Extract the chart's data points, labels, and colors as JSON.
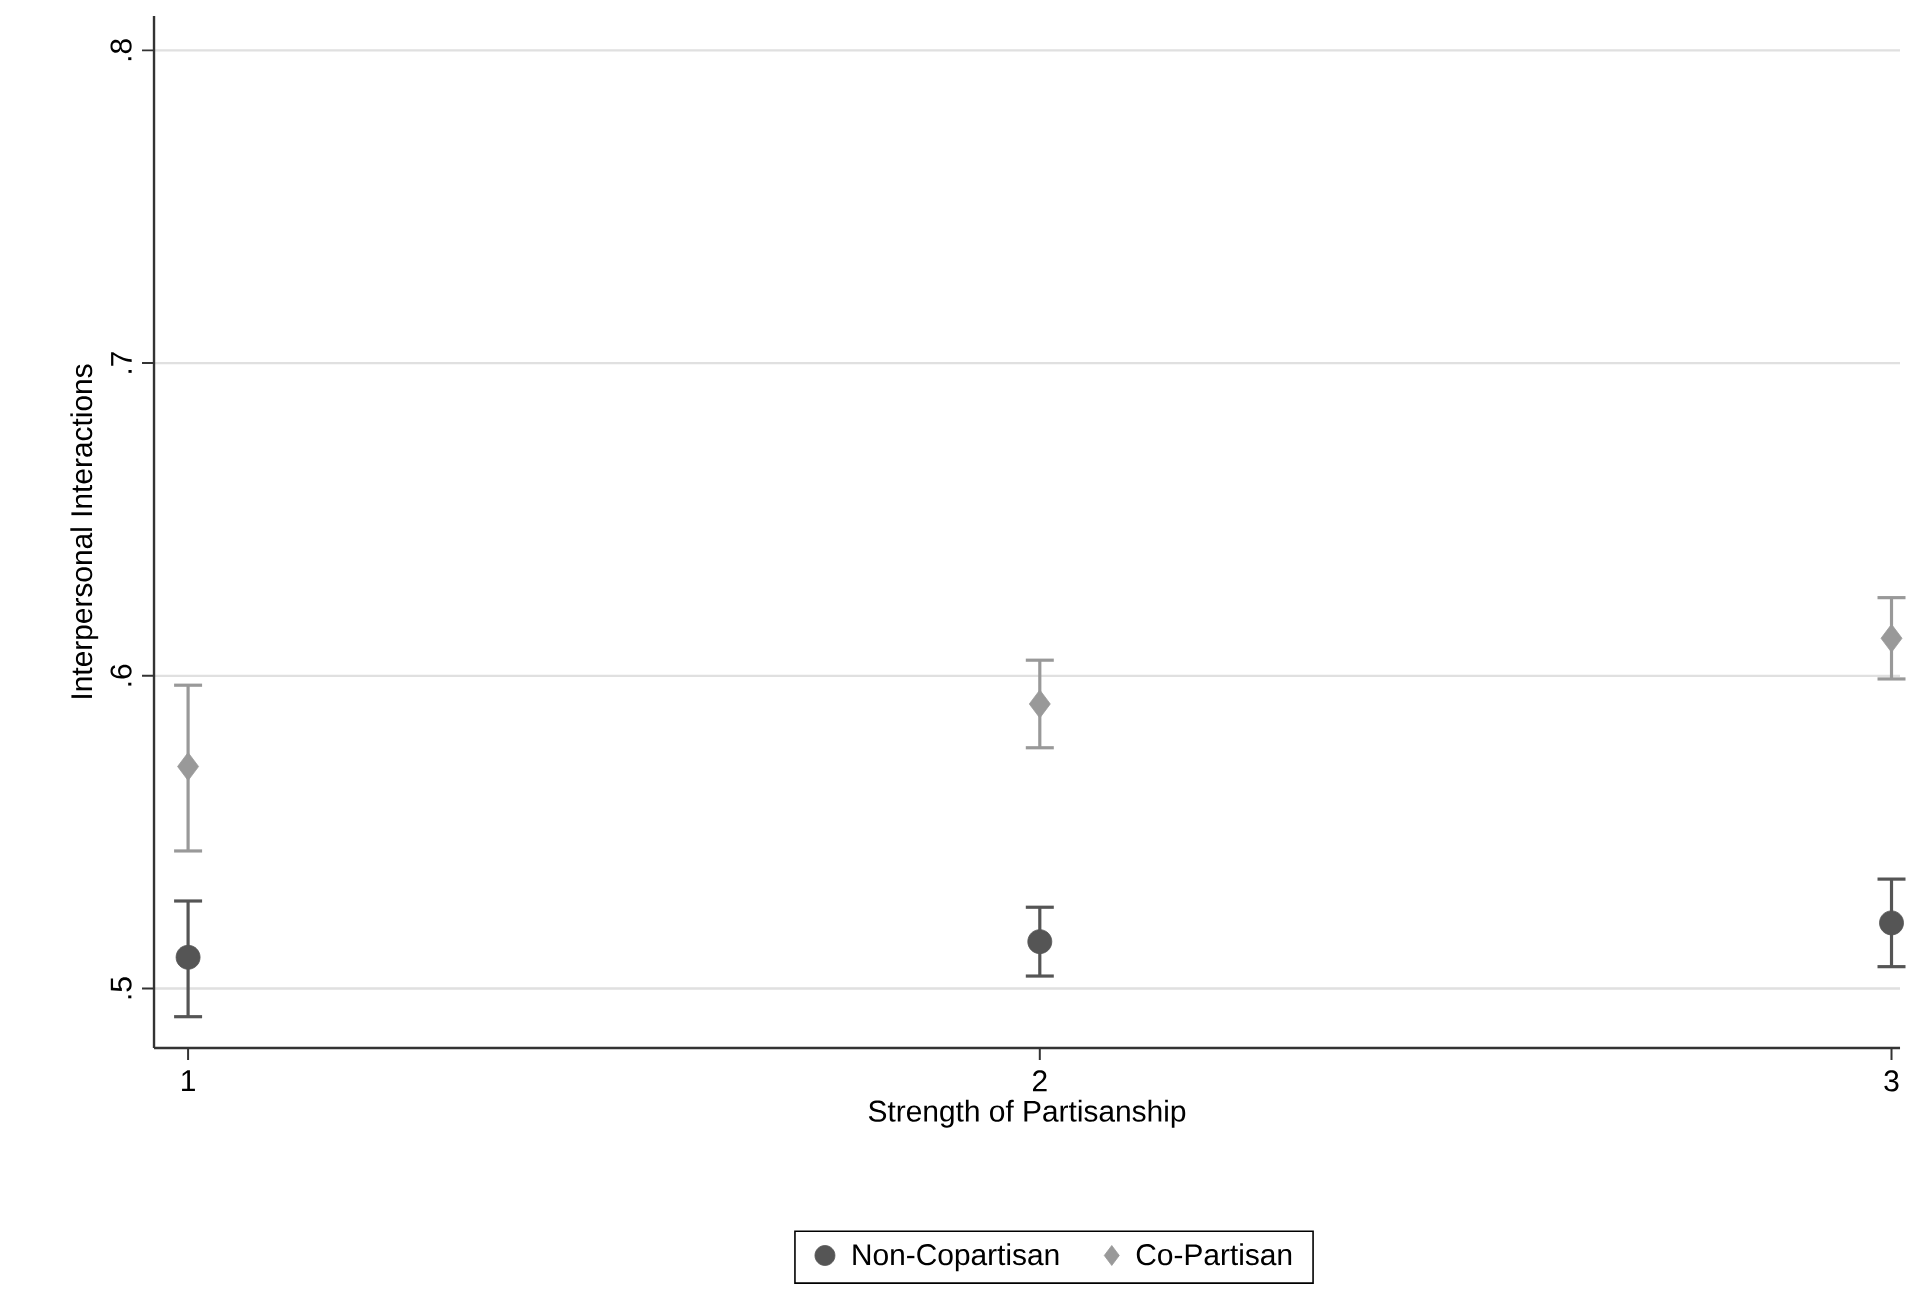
{
  "chart_data": {
    "type": "scatter",
    "xlabel": "Strength of Partisanship",
    "ylabel": "Interpersonal Interactions",
    "x": [
      1,
      2,
      3
    ],
    "xlim": [
      0.96,
      3.01
    ],
    "xticks": [
      1,
      2,
      3
    ],
    "ylim": [
      0.481,
      0.811
    ],
    "yticks": [
      {
        "value": 0.5,
        "label": ".5"
      },
      {
        "value": 0.6,
        "label": ".6"
      },
      {
        "value": 0.7,
        "label": ".7"
      },
      {
        "value": 0.8,
        "label": ".8"
      }
    ],
    "grid": "y",
    "legend": "bottom",
    "series": [
      {
        "name": "Non-Copartisan",
        "color": "#555555",
        "marker": "circle",
        "values": [
          0.51,
          0.515,
          0.521
        ],
        "errors": [
          [
            0.491,
            0.528
          ],
          [
            0.504,
            0.526
          ],
          [
            0.507,
            0.535
          ]
        ]
      },
      {
        "name": "Co-Partisan",
        "color": "#999999",
        "marker": "diamond",
        "values": [
          0.571,
          0.591,
          0.612
        ],
        "errors": [
          [
            0.544,
            0.597
          ],
          [
            0.577,
            0.605
          ],
          [
            0.599,
            0.625
          ]
        ]
      }
    ]
  }
}
